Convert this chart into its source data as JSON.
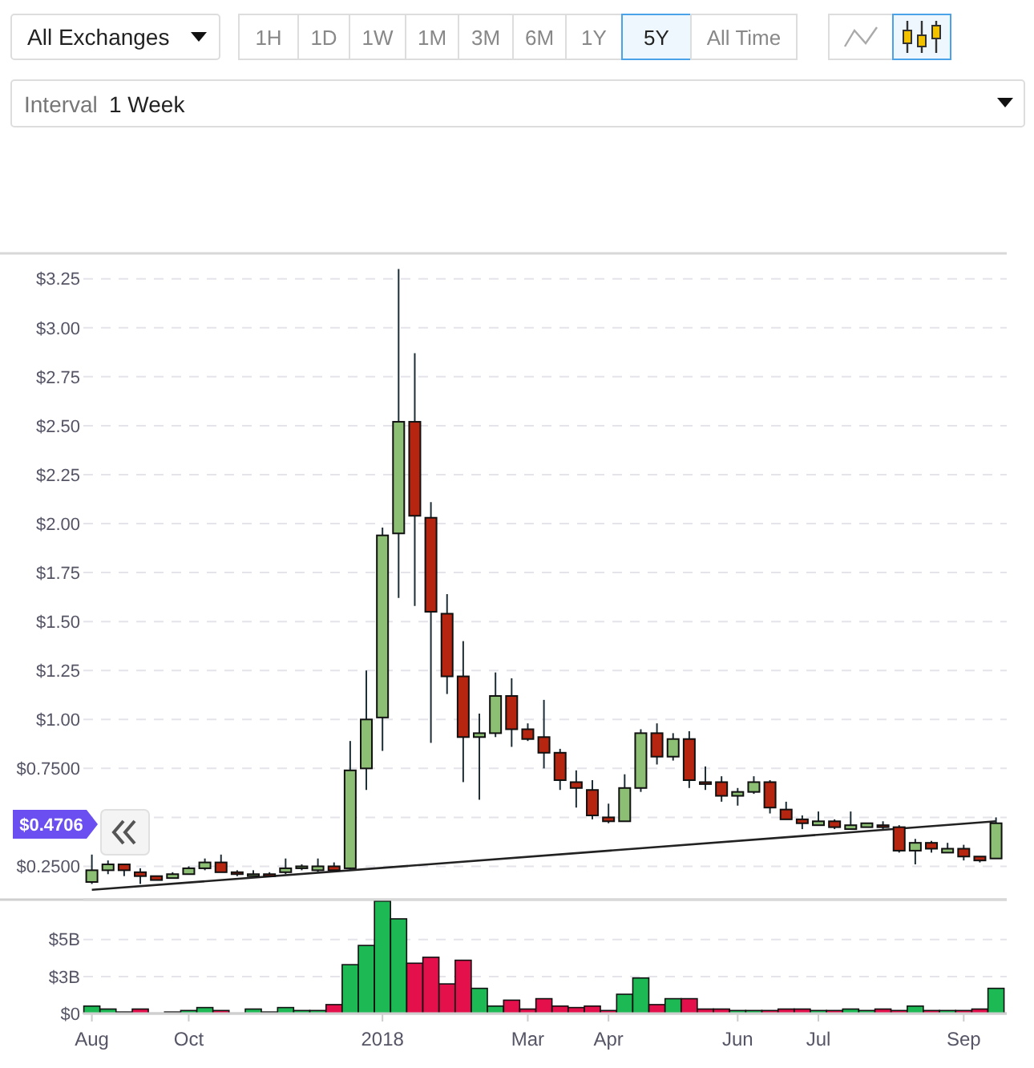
{
  "chart_data": [
    {
      "type": "candlestick",
      "categories": [
        null,
        null,
        null,
        null,
        null,
        null,
        null,
        null,
        null,
        null,
        null,
        null,
        null,
        null,
        null,
        null,
        null,
        null,
        null,
        null,
        null,
        null,
        null,
        null,
        null,
        null,
        null,
        null,
        null,
        null,
        null,
        null,
        null,
        null,
        null,
        null,
        null,
        null,
        null,
        null,
        null,
        null,
        null,
        null,
        null,
        null,
        null,
        null,
        null,
        null,
        null,
        null,
        null,
        null,
        null,
        null,
        null
      ],
      "ohlc": [
        [
          0.17,
          0.31,
          0.16,
          0.23
        ],
        [
          0.23,
          0.28,
          0.21,
          0.26
        ],
        [
          0.26,
          0.26,
          0.2,
          0.23
        ],
        [
          0.22,
          0.24,
          0.16,
          0.2
        ],
        [
          0.2,
          0.2,
          0.18,
          0.18
        ],
        [
          0.19,
          0.22,
          0.19,
          0.21
        ],
        [
          0.21,
          0.25,
          0.21,
          0.24
        ],
        [
          0.24,
          0.29,
          0.23,
          0.27
        ],
        [
          0.27,
          0.31,
          0.22,
          0.22
        ],
        [
          0.22,
          0.23,
          0.2,
          0.21
        ],
        [
          0.2,
          0.23,
          0.2,
          0.21
        ],
        [
          0.21,
          0.22,
          0.2,
          0.2
        ],
        [
          0.22,
          0.29,
          0.21,
          0.24
        ],
        [
          0.24,
          0.26,
          0.23,
          0.25
        ],
        [
          0.23,
          0.29,
          0.22,
          0.25
        ],
        [
          0.25,
          0.27,
          0.23,
          0.23
        ],
        [
          0.24,
          0.89,
          0.23,
          0.74
        ],
        [
          0.75,
          1.25,
          0.64,
          1.0
        ],
        [
          1.01,
          1.98,
          0.84,
          1.94
        ],
        [
          1.95,
          3.3,
          1.62,
          2.52
        ],
        [
          2.52,
          2.87,
          1.58,
          2.04
        ],
        [
          2.03,
          2.11,
          0.88,
          1.55
        ],
        [
          1.54,
          1.64,
          1.13,
          1.22
        ],
        [
          1.22,
          1.4,
          0.68,
          0.91
        ],
        [
          0.91,
          1.03,
          0.59,
          0.93
        ],
        [
          0.93,
          1.24,
          0.91,
          1.12
        ],
        [
          1.12,
          1.21,
          0.86,
          0.95
        ],
        [
          0.95,
          0.98,
          0.89,
          0.9
        ],
        [
          0.91,
          1.1,
          0.75,
          0.83
        ],
        [
          0.83,
          0.85,
          0.64,
          0.69
        ],
        [
          0.68,
          0.74,
          0.55,
          0.65
        ],
        [
          0.64,
          0.69,
          0.49,
          0.51
        ],
        [
          0.5,
          0.57,
          0.47,
          0.48
        ],
        [
          0.48,
          0.72,
          0.48,
          0.65
        ],
        [
          0.65,
          0.95,
          0.63,
          0.93
        ],
        [
          0.93,
          0.98,
          0.77,
          0.81
        ],
        [
          0.81,
          0.93,
          0.79,
          0.9
        ],
        [
          0.9,
          0.94,
          0.65,
          0.69
        ],
        [
          0.68,
          0.76,
          0.64,
          0.67
        ],
        [
          0.68,
          0.71,
          0.58,
          0.61
        ],
        [
          0.61,
          0.65,
          0.56,
          0.63
        ],
        [
          0.63,
          0.71,
          0.62,
          0.68
        ],
        [
          0.68,
          0.69,
          0.52,
          0.55
        ],
        [
          0.54,
          0.58,
          0.49,
          0.49
        ],
        [
          0.49,
          0.51,
          0.44,
          0.47
        ],
        [
          0.46,
          0.53,
          0.46,
          0.48
        ],
        [
          0.48,
          0.49,
          0.44,
          0.45
        ],
        [
          0.44,
          0.53,
          0.44,
          0.46
        ],
        [
          0.45,
          0.47,
          0.45,
          0.47
        ],
        [
          0.46,
          0.48,
          0.44,
          0.45
        ],
        [
          0.45,
          0.46,
          0.32,
          0.33
        ],
        [
          0.33,
          0.39,
          0.26,
          0.37
        ],
        [
          0.37,
          0.38,
          0.32,
          0.34
        ],
        [
          0.32,
          0.37,
          0.32,
          0.34
        ],
        [
          0.34,
          0.36,
          0.28,
          0.3
        ],
        [
          0.3,
          0.3,
          0.27,
          0.28
        ],
        [
          0.29,
          0.5,
          0.29,
          0.47
        ]
      ],
      "colors": [
        "#8cbf74",
        "#8cbf74",
        "#b5250f",
        "#b5250f",
        "#b5250f",
        "#8cbf74",
        "#8cbf74",
        "#8cbf74",
        "#b5250f",
        "#b5250f",
        "#8cbf74",
        "#b5250f",
        "#8cbf74",
        "#8cbf74",
        "#8cbf74",
        "#b5250f",
        "#8cbf74",
        "#8cbf74",
        "#8cbf74",
        "#8cbf74",
        "#b5250f",
        "#b5250f",
        "#b5250f",
        "#b5250f",
        "#8cbf74",
        "#8cbf74",
        "#b5250f",
        "#b5250f",
        "#b5250f",
        "#b5250f",
        "#b5250f",
        "#b5250f",
        "#b5250f",
        "#8cbf74",
        "#8cbf74",
        "#b5250f",
        "#8cbf74",
        "#b5250f",
        "#b5250f",
        "#b5250f",
        "#8cbf74",
        "#8cbf74",
        "#b5250f",
        "#b5250f",
        "#b5250f",
        "#8cbf74",
        "#b5250f",
        "#8cbf74",
        "#8cbf74",
        "#b5250f",
        "#b5250f",
        "#8cbf74",
        "#b5250f",
        "#8cbf74",
        "#b5250f",
        "#b5250f",
        "#8cbf74"
      ],
      "series": [
        {
          "type": "line",
          "color": "#222222",
          "values": [
            0.13,
            null,
            null,
            null,
            null,
            null,
            null,
            null,
            null,
            null,
            null,
            null,
            null,
            null,
            null,
            null,
            null,
            null,
            null,
            null,
            null,
            null,
            null,
            null,
            null,
            null,
            null,
            null,
            null,
            null,
            null,
            null,
            null,
            null,
            null,
            null,
            null,
            null,
            null,
            null,
            null,
            null,
            null,
            null,
            null,
            null,
            null,
            null,
            null,
            null,
            null,
            null,
            null,
            null,
            null,
            null,
            0.48
          ]
        }
      ],
      "ylim": [
        0.08,
        3.38
      ],
      "yticks": [
        {
          "value": 0.25,
          "label": "$0.2500"
        },
        {
          "value": 0.5,
          "label": null
        },
        {
          "value": 0.75,
          "label": "$0.7500"
        },
        {
          "value": 1,
          "label": "$1.00"
        },
        {
          "value": 1.25,
          "label": "$1.25"
        },
        {
          "value": 1.5,
          "label": "$1.50"
        },
        {
          "value": 1.75,
          "label": "$1.75"
        },
        {
          "value": 2,
          "label": "$2.00"
        },
        {
          "value": 2.25,
          "label": "$2.25"
        },
        {
          "value": 2.5,
          "label": "$2.50"
        },
        {
          "value": 2.75,
          "label": "$2.75"
        },
        {
          "value": 3,
          "label": "$3.00"
        },
        {
          "value": 3.25,
          "label": "$3.25"
        }
      ],
      "grid": "y",
      "tick_labels": "y",
      "annotations": [
        "All Exchanges",
        "1H",
        "1D",
        "1W",
        "1M",
        "3M",
        "6M",
        "1Y",
        "5Y",
        "All Time",
        "Interval",
        "1 Week",
        "$0.4706"
      ]
    },
    {
      "type": "bar",
      "categories": [
        "Aug",
        null,
        null,
        null,
        null,
        null,
        "Oct",
        null,
        null,
        null,
        null,
        null,
        null,
        null,
        null,
        null,
        null,
        null,
        "2018",
        null,
        null,
        null,
        null,
        null,
        null,
        null,
        null,
        "Mar",
        null,
        null,
        null,
        null,
        "Apr",
        null,
        null,
        null,
        null,
        null,
        null,
        null,
        "Jun",
        null,
        null,
        null,
        null,
        "Jul",
        null,
        null,
        null,
        null,
        null,
        null,
        null,
        null,
        "Sep",
        null,
        null
      ],
      "values": [
        0.5,
        0.3,
        0.1,
        0.3,
        0,
        0.1,
        0.2,
        0.4,
        0.2,
        0,
        0.3,
        0.1,
        0.4,
        0.2,
        0.2,
        0.6,
        3.3,
        4.6,
        7.6,
        6.4,
        3.4,
        3.8,
        2.0,
        3.6,
        1.7,
        0.5,
        0.9,
        0.3,
        1.0,
        0.5,
        0.4,
        0.5,
        0.2,
        1.3,
        2.4,
        0.6,
        1.0,
        1.0,
        0.3,
        0.3,
        0.2,
        0.2,
        0.2,
        0.3,
        0.3,
        0.2,
        0.2,
        0.3,
        0.2,
        0.3,
        0.2,
        0.5,
        0.2,
        0.2,
        0.2,
        0.3,
        1.7
      ],
      "colors": [
        "#1cb955",
        "#1cb955",
        "#1cb955",
        "#e3104b",
        "#1cb955",
        "#1cb955",
        "#1cb955",
        "#1cb955",
        "#e3104b",
        "#1cb955",
        "#1cb955",
        "#1cb955",
        "#1cb955",
        "#1cb955",
        "#1cb955",
        "#e3104b",
        "#1cb955",
        "#1cb955",
        "#1cb955",
        "#1cb955",
        "#e3104b",
        "#e3104b",
        "#e3104b",
        "#e3104b",
        "#1cb955",
        "#1cb955",
        "#e3104b",
        "#e3104b",
        "#e3104b",
        "#e3104b",
        "#e3104b",
        "#e3104b",
        "#e3104b",
        "#1cb955",
        "#1cb955",
        "#e3104b",
        "#1cb955",
        "#e3104b",
        "#e3104b",
        "#e3104b",
        "#1cb955",
        "#1cb955",
        "#e3104b",
        "#e3104b",
        "#e3104b",
        "#1cb955",
        "#e3104b",
        "#1cb955",
        "#1cb955",
        "#e3104b",
        "#e3104b",
        "#1cb955",
        "#e3104b",
        "#1cb955",
        "#e3104b",
        "#e3104b",
        "#1cb955"
      ],
      "ylim": [
        0,
        7.7
      ],
      "yticks": [
        {
          "value": 0,
          "label": "$0"
        },
        {
          "value": 2.5,
          "label": "$3B"
        },
        {
          "value": 5,
          "label": "$5B"
        }
      ],
      "grid": "y"
    }
  ]
}
